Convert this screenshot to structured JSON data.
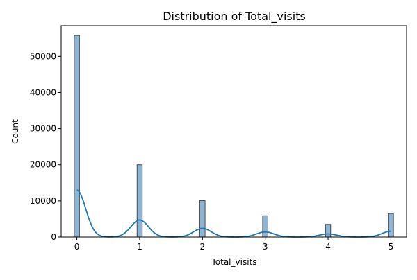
{
  "chart_data": {
    "type": "bar",
    "title": "Distribution of Total_visits",
    "xlabel": "Total_visits",
    "ylabel": "Count",
    "xlim": [
      -0.25,
      5.25
    ],
    "ylim": [
      0,
      58500
    ],
    "xticks": [
      "0",
      "1",
      "2",
      "3",
      "4",
      "5"
    ],
    "yticks": [
      "0",
      "10000",
      "20000",
      "30000",
      "40000",
      "50000"
    ],
    "bar_width": 0.0833,
    "bars": [
      {
        "x": 0,
        "count": 55800
      },
      {
        "x": 1,
        "count": 20000
      },
      {
        "x": 2,
        "count": 10100
      },
      {
        "x": 3,
        "count": 5900
      },
      {
        "x": 4,
        "count": 3500
      },
      {
        "x": 5,
        "count": 6500
      }
    ],
    "kde": {
      "peaks": [
        {
          "x": 0,
          "y": 13000
        },
        {
          "x": 1,
          "y": 4700
        },
        {
          "x": 2,
          "y": 2400
        },
        {
          "x": 3,
          "y": 1400
        },
        {
          "x": 4,
          "y": 850
        },
        {
          "x": 5,
          "y": 1600
        }
      ],
      "bandwidth": 0.14
    },
    "colors": {
      "bar_fill": "#8fb5d5",
      "bar_edge": "#2b2b2b",
      "kde_line": "#1f77b4"
    },
    "grid": false,
    "legend": "none"
  }
}
